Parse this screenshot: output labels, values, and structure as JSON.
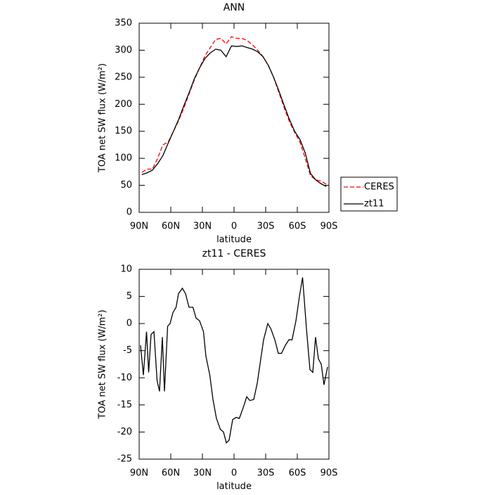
{
  "chart_data": [
    {
      "type": "line",
      "title": "ANN",
      "x_label": "latitude",
      "y_label": "TOA net SW flux (W/m²)",
      "x": [
        87.5,
        82.5,
        77.5,
        72.5,
        67.5,
        62.5,
        57.5,
        52.5,
        47.5,
        42.5,
        37.5,
        32.5,
        27.5,
        22.5,
        17.5,
        12.5,
        7.5,
        2.5,
        -2.5,
        -7.5,
        -12.5,
        -17.5,
        -22.5,
        -27.5,
        -32.5,
        -37.5,
        -42.5,
        -47.5,
        -52.5,
        -57.5,
        -62.5,
        -67.5,
        -72.5,
        -77.5,
        -82.5,
        -87.5
      ],
      "series": [
        {
          "name": "CERES",
          "color": "#ff0000",
          "linestyle": "dashed",
          "values": [
            74,
            80,
            80,
            100,
            125,
            130,
            150,
            170,
            194,
            220,
            246,
            268,
            290,
            305,
            320,
            322,
            312,
            325,
            322,
            322,
            318,
            310,
            300,
            288,
            272,
            250,
            222,
            194,
            168,
            148,
            130,
            100,
            68,
            60,
            58,
            52
          ]
        },
        {
          "name": "zt11",
          "color": "#000000",
          "linestyle": "solid",
          "values": [
            70,
            73,
            78,
            90,
            105,
            128,
            150,
            172,
            198,
            222,
            248,
            268,
            285,
            295,
            302,
            300,
            288,
            308,
            307,
            308,
            305,
            302,
            297,
            288,
            272,
            250,
            225,
            198,
            172,
            150,
            135,
            110,
            72,
            60,
            53,
            48
          ]
        }
      ],
      "xlim": [
        90,
        -90
      ],
      "ylim": [
        0,
        350
      ],
      "xticks": [
        {
          "value": 90,
          "label": "90N"
        },
        {
          "value": 60,
          "label": "60N"
        },
        {
          "value": 30,
          "label": "30N"
        },
        0,
        {
          "value": -30,
          "label": "30S"
        },
        {
          "value": -60,
          "label": "60S"
        },
        {
          "value": -90,
          "label": "90S"
        }
      ],
      "yticks": [
        0,
        50,
        100,
        150,
        200,
        250,
        300,
        350
      ],
      "legend_loc": "right"
    },
    {
      "type": "line",
      "title": "zt11 - CERES",
      "x_label": "latitude",
      "y_label": "TOA net SW flux (W/m²)",
      "x": [
        88.7,
        86,
        83,
        81,
        78.7,
        76,
        73,
        70.7,
        68,
        66,
        63,
        60.7,
        58,
        55,
        52.7,
        49,
        46,
        42.7,
        39,
        36,
        32.7,
        29,
        26.7,
        23,
        20,
        16.7,
        13,
        10,
        7.3,
        4.7,
        1.3,
        -2,
        -5,
        -8.7,
        -12,
        -15,
        -18.7,
        -22,
        -25,
        -28,
        -32,
        -35,
        -38.7,
        -42,
        -45,
        -48.7,
        -52,
        -55,
        -58.7,
        -62,
        -65,
        -68.7,
        -72,
        -74.7,
        -77.3,
        -80,
        -82.7,
        -85.3,
        -88.7
      ],
      "series": [
        {
          "color": "#000000",
          "linestyle": "solid",
          "values": [
            -4,
            -9.5,
            -1.5,
            -9,
            -2,
            -1.5,
            -10.5,
            -12.5,
            -2.5,
            -12.5,
            -0.5,
            0,
            2,
            3,
            5.5,
            6.5,
            5.5,
            3,
            3,
            1,
            0.5,
            -1.5,
            -6,
            -9.5,
            -14,
            -17.5,
            -19.5,
            -20,
            -22,
            -21.5,
            -17.7,
            -17.3,
            -17.5,
            -15.5,
            -13.5,
            -14.2,
            -14,
            -11,
            -7,
            -3,
            0,
            -1,
            -3,
            -5.5,
            -5.5,
            -4,
            -3,
            -3,
            0.5,
            5,
            8.5,
            -1,
            -8.5,
            -9,
            -2.5,
            -6.5,
            -7.5,
            -11.3,
            -8
          ]
        }
      ],
      "xlim": [
        90,
        -90
      ],
      "ylim": [
        -25,
        10
      ],
      "xticks": [
        {
          "value": 90,
          "label": "90N"
        },
        {
          "value": 60,
          "label": "60N"
        },
        {
          "value": 30,
          "label": "30N"
        },
        0,
        {
          "value": -30,
          "label": "30S"
        },
        {
          "value": -60,
          "label": "60S"
        },
        {
          "value": -90,
          "label": "90S"
        }
      ],
      "yticks": [
        -25,
        -20,
        -15,
        -10,
        -5,
        0,
        5,
        10
      ]
    }
  ]
}
